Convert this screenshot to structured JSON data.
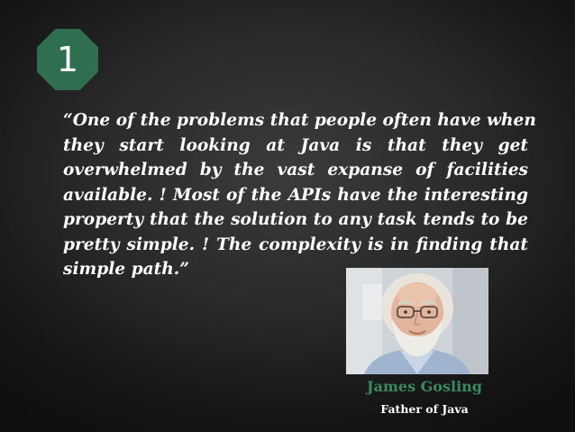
{
  "slide": {
    "number": "1",
    "quote_lines": [
      "“One of the problems that people often have when",
      "they start looking at Java is that they get",
      "overwhelmed by the vast expanse of facilities",
      "available. ! Most of the APIs have the interesting",
      "property that the solution to any task tends to be",
      "pretty simple. ! The complexity is in finding that",
      "simple path.”"
    ],
    "author_name": "James Gosling",
    "author_title": "Father of Java"
  },
  "colors": {
    "badge": "#2f6e4f",
    "author_name": "#3a8a5e",
    "text": "#ffffff",
    "background": "#2a2a2a"
  }
}
